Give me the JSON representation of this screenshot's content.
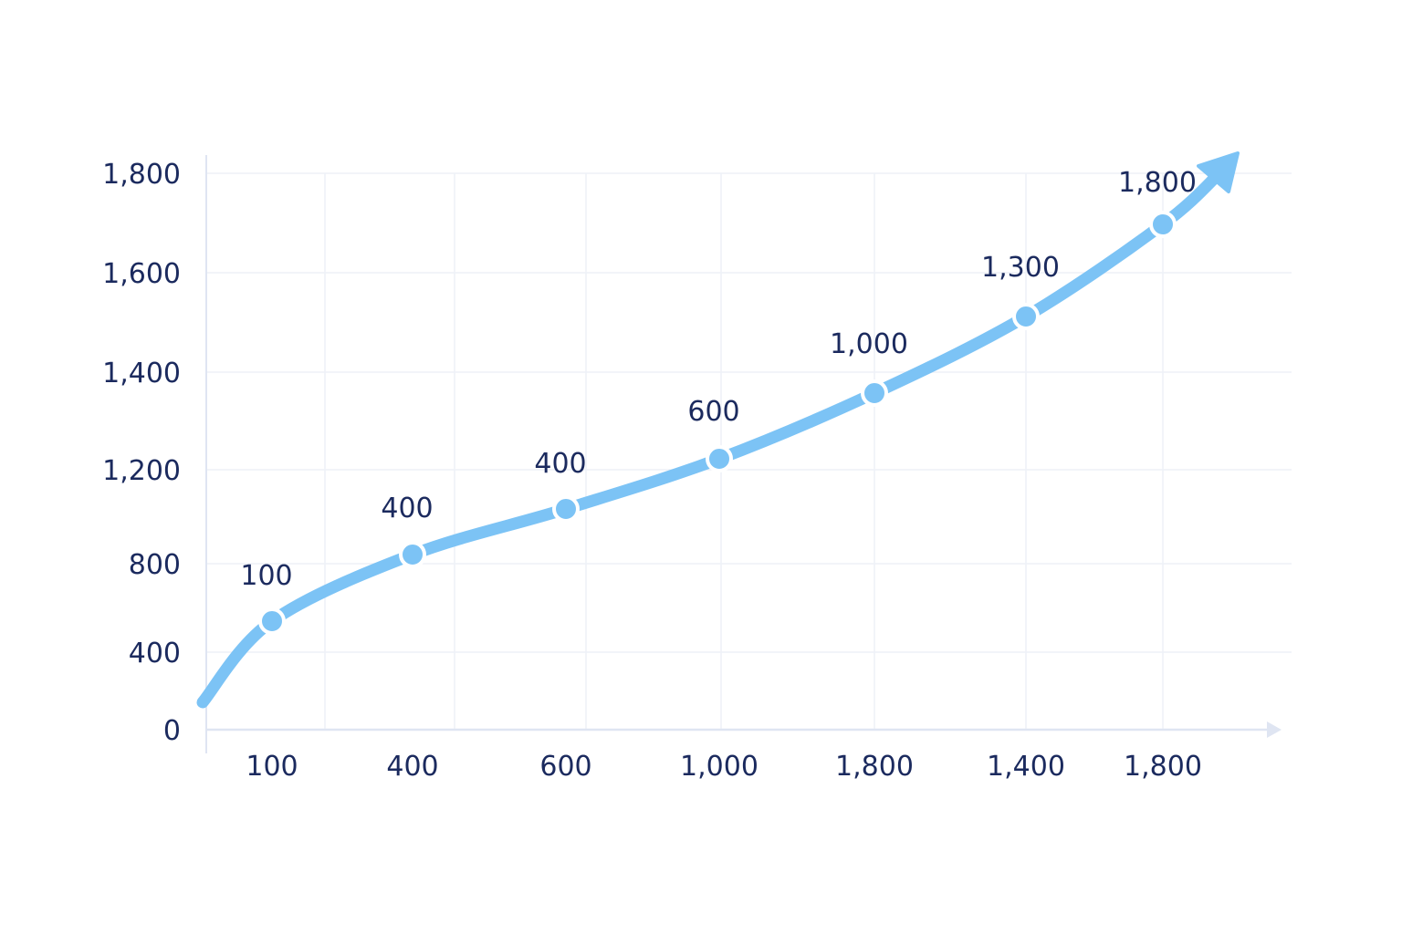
{
  "chart_data": {
    "type": "line",
    "title": "",
    "xlabel": "",
    "ylabel": "",
    "x_tick_labels": [
      "100",
      "400",
      "600",
      "1,000",
      "1,800",
      "1,400",
      "1,800"
    ],
    "y_tick_labels": [
      {
        "value": 0,
        "label": "0"
      },
      {
        "value": 400,
        "label": "400"
      },
      {
        "value": 800,
        "label": "800"
      },
      {
        "value": 1200,
        "label": "1,200"
      },
      {
        "value": 1400,
        "label": "1,400"
      },
      {
        "value": 1600,
        "label": "1,600"
      },
      {
        "value": 1800,
        "label": "1,800"
      }
    ],
    "series": [
      {
        "points": [
          {
            "y": 100,
            "label": "100"
          },
          {
            "y": 400,
            "label": "400"
          },
          {
            "y": 400,
            "label": "400"
          },
          {
            "y": 600,
            "label": "600"
          },
          {
            "y": 1000,
            "label": "1,000"
          },
          {
            "y": 1300,
            "label": "1,300"
          },
          {
            "y": 1800,
            "label": "1,800"
          }
        ]
      }
    ],
    "grid": true,
    "trend_arrow": true,
    "colors": {
      "line": "#7cc3f5",
      "grid": "#eef1f7",
      "axis": "#dfe5f2",
      "text": "#1b2a5e"
    }
  }
}
